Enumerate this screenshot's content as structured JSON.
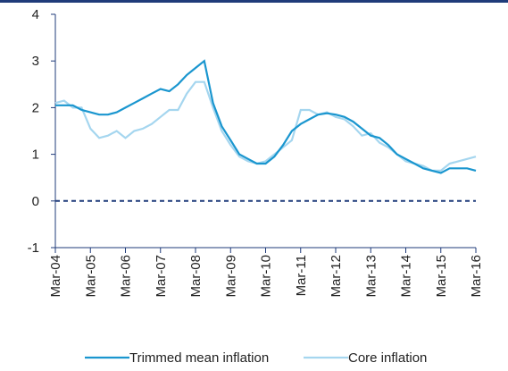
{
  "chart_data": {
    "type": "line",
    "x": [
      "Mar-04",
      "Jun-04",
      "Sep-04",
      "Dec-04",
      "Mar-05",
      "Jun-05",
      "Sep-05",
      "Dec-05",
      "Mar-06",
      "Jun-06",
      "Sep-06",
      "Dec-06",
      "Mar-07",
      "Jun-07",
      "Sep-07",
      "Dec-07",
      "Mar-08",
      "Jun-08",
      "Sep-08",
      "Dec-08",
      "Mar-09",
      "Jun-09",
      "Sep-09",
      "Dec-09",
      "Mar-10",
      "Jun-10",
      "Sep-10",
      "Dec-10",
      "Mar-11",
      "Jun-11",
      "Sep-11",
      "Dec-11",
      "Mar-12",
      "Jun-12",
      "Sep-12",
      "Dec-12",
      "Mar-13",
      "Jun-13",
      "Sep-13",
      "Dec-13",
      "Mar-14",
      "Jun-14",
      "Sep-14",
      "Dec-14",
      "Mar-15",
      "Jun-15",
      "Sep-15",
      "Dec-15",
      "Mar-16"
    ],
    "series": [
      {
        "name": "Trimmed mean inflation",
        "color": "#1a96cf",
        "values": [
          2.05,
          2.05,
          2.05,
          1.95,
          1.9,
          1.85,
          1.85,
          1.9,
          2.0,
          2.1,
          2.2,
          2.3,
          2.4,
          2.35,
          2.5,
          2.7,
          2.85,
          3.0,
          2.1,
          1.6,
          1.3,
          1.0,
          0.9,
          0.8,
          0.8,
          0.95,
          1.2,
          1.5,
          1.65,
          1.75,
          1.85,
          1.88,
          1.85,
          1.8,
          1.7,
          1.55,
          1.4,
          1.35,
          1.2,
          1.0,
          0.9,
          0.8,
          0.7,
          0.65,
          0.6,
          0.7,
          0.7,
          0.7,
          0.65
        ]
      },
      {
        "name": "Core inflation",
        "color": "#a5d6ef",
        "values": [
          2.1,
          2.15,
          2.0,
          2.0,
          1.55,
          1.35,
          1.4,
          1.5,
          1.35,
          1.5,
          1.55,
          1.65,
          1.8,
          1.95,
          1.95,
          2.3,
          2.55,
          2.55,
          2.0,
          1.5,
          1.2,
          0.95,
          0.85,
          0.8,
          0.85,
          1.0,
          1.15,
          1.3,
          1.95,
          1.95,
          1.85,
          1.9,
          1.8,
          1.75,
          1.6,
          1.4,
          1.45,
          1.25,
          1.15,
          1.0,
          0.85,
          0.8,
          0.75,
          0.65,
          0.65,
          0.8,
          0.85,
          0.9,
          0.95
        ]
      }
    ],
    "xticks": [
      "Mar-04",
      "Mar-05",
      "Mar-06",
      "Mar-07",
      "Mar-08",
      "Mar-09",
      "Mar-10",
      "Mar-11",
      "Mar-12",
      "Mar-13",
      "Mar-14",
      "Mar-15",
      "Mar-16"
    ],
    "ylim": [
      -1,
      4
    ],
    "yticks": [
      -1,
      0,
      1,
      2,
      3,
      4
    ],
    "grid": false,
    "legend": "bottom"
  }
}
